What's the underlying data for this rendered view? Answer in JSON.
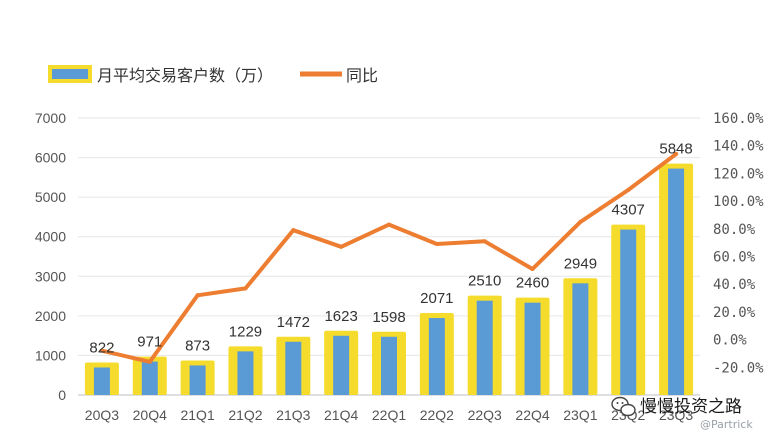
{
  "chart_data": {
    "type": "bar",
    "categories": [
      "20Q3",
      "20Q4",
      "21Q1",
      "21Q2",
      "21Q3",
      "21Q4",
      "22Q1",
      "22Q2",
      "22Q3",
      "22Q4",
      "23Q1",
      "23Q2",
      "23Q3"
    ],
    "series": [
      {
        "name": "月平均交易客户数（万）",
        "type": "bar",
        "axis": "left",
        "values": [
          822,
          971,
          873,
          1229,
          1472,
          1623,
          1598,
          2071,
          2510,
          2460,
          2949,
          4307,
          5848
        ],
        "labels": [
          "822",
          "971",
          "873",
          "1229",
          "1472",
          "1623",
          "1598",
          "2071",
          "2510",
          "2460",
          "2949",
          "4307",
          "5848"
        ]
      },
      {
        "name": "同比",
        "type": "line",
        "axis": "right",
        "values": [
          -8,
          -16,
          32,
          37,
          79,
          67,
          83,
          69,
          71,
          51,
          85,
          108,
          134
        ]
      }
    ],
    "y_left": {
      "min": 0,
      "max": 7000,
      "ticks": [
        "0",
        "1000",
        "2000",
        "3000",
        "4000",
        "5000",
        "6000",
        "7000"
      ]
    },
    "y_right": {
      "min": -40,
      "max": 160,
      "ticks": [
        "160.0%",
        "140.0%",
        "120.0%",
        "100.0%",
        "80.0%",
        "60.0%",
        "40.0%",
        "20.0%",
        "0.0%",
        "-20.0%"
      ],
      "tick_values": [
        160,
        140,
        120,
        100,
        80,
        60,
        40,
        20,
        0,
        -20
      ]
    },
    "grid": true,
    "legend_position": "top-left",
    "colors": {
      "bar_fill": "#5b9bd5",
      "bar_border": "#f5dc2c",
      "line": "#ed7d31",
      "grid": "#e6e6e6",
      "axis": "#bfbfbf"
    }
  },
  "watermark": {
    "text": "慢慢投资之路",
    "sub": "@Partrick",
    "icon": "wechat-icon"
  }
}
